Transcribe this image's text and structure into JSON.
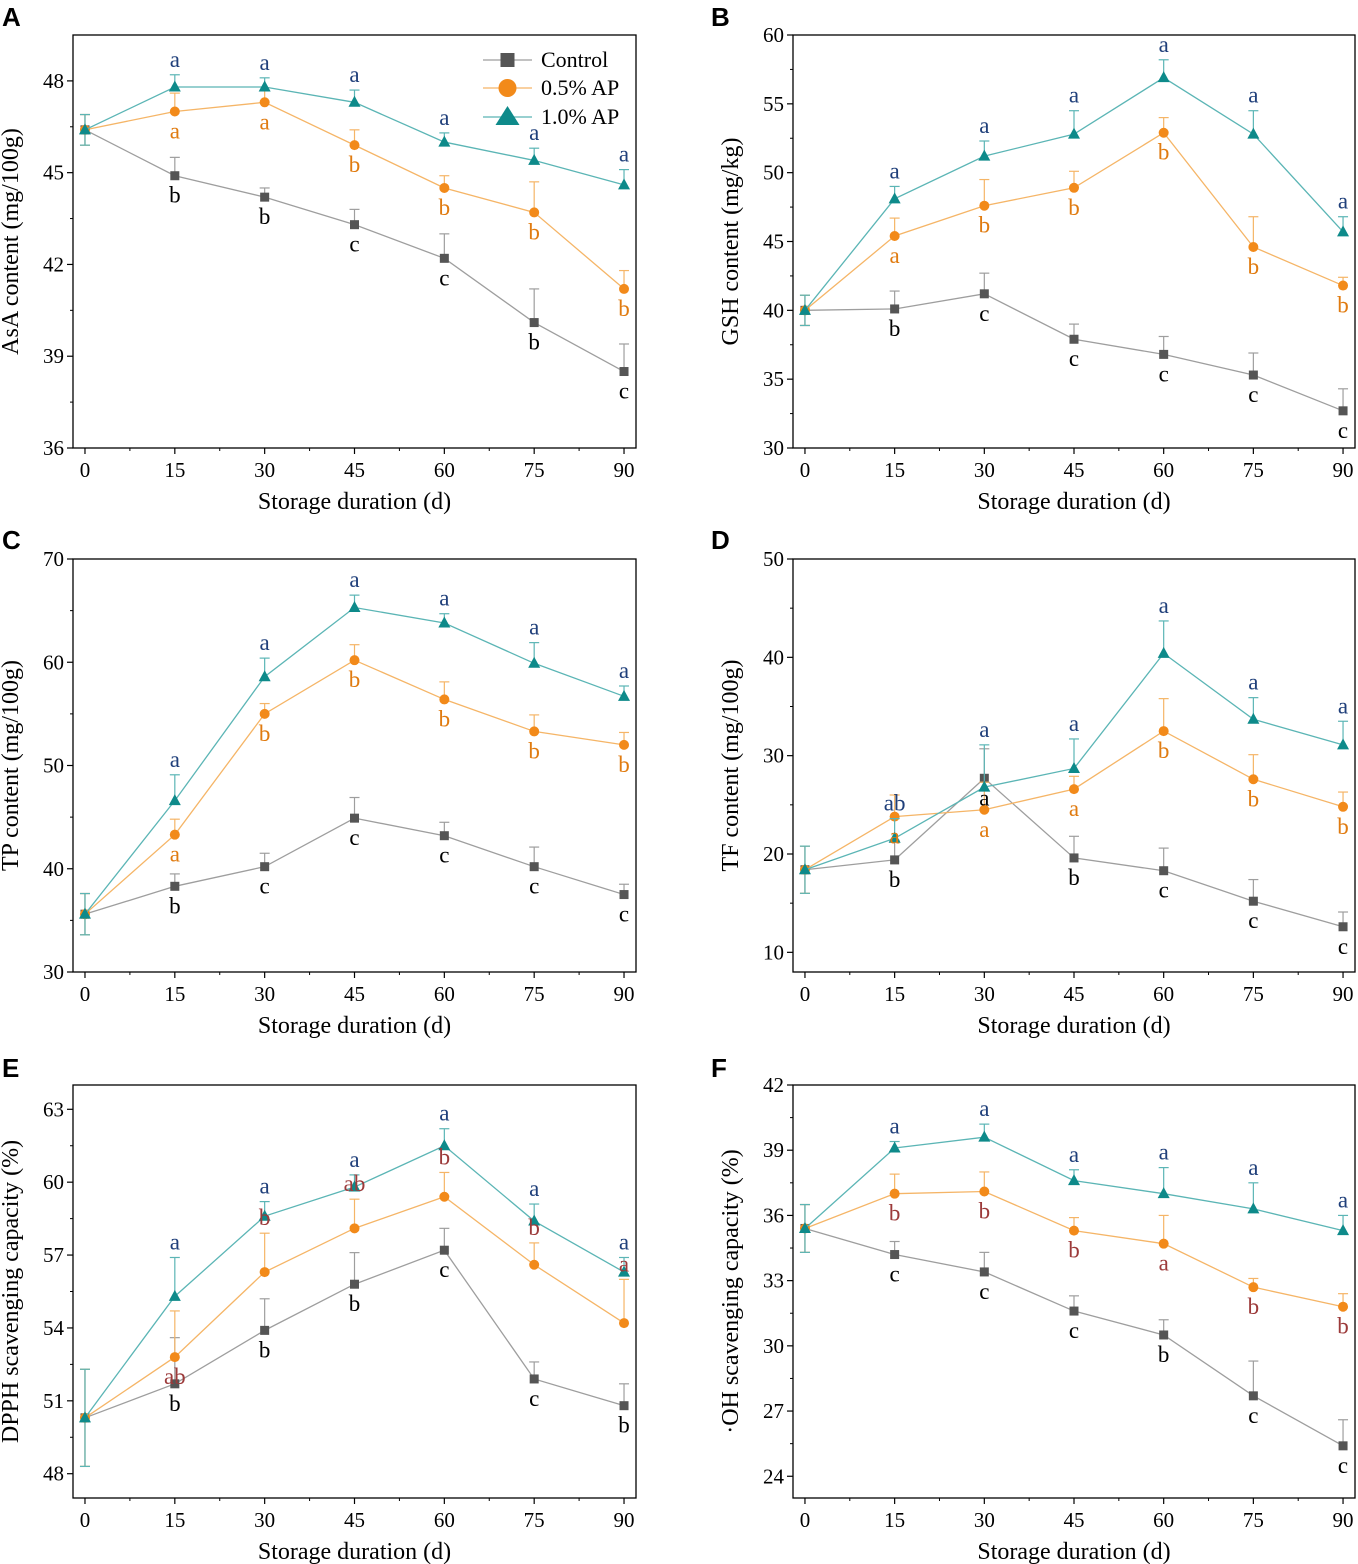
{
  "series_styles": [
    {
      "name": "Control",
      "color": "#555555",
      "line_color": "#9e9e9e",
      "marker": "square"
    },
    {
      "name": "0.5% AP",
      "color": "#f28a1a",
      "line_color": "#f5b567",
      "marker": "circle"
    },
    {
      "name": "1.0% AP",
      "color": "#0e8a8a",
      "line_color": "#5bb5b5",
      "marker": "triangle"
    }
  ],
  "legend": {
    "position": "top-right",
    "entries": [
      "Control",
      "0.5% AP",
      "1.0% AP"
    ]
  },
  "chart_data": [
    {
      "panel": "A",
      "type": "line",
      "xlabel": "Storage duration (d)",
      "ylabel": "AsA content (mg/100g)",
      "x": [
        0,
        15,
        30,
        45,
        60,
        75,
        90
      ],
      "xlim": [
        -2,
        92
      ],
      "ylim": [
        36,
        49.5
      ],
      "yticks": [
        36,
        39,
        42,
        45,
        48
      ],
      "ytick_labels": [
        "36",
        "39",
        "42",
        "45",
        "48"
      ],
      "series": [
        {
          "name": "Control",
          "values": [
            46.4,
            44.9,
            44.2,
            43.3,
            42.2,
            40.1,
            38.5
          ],
          "errors": [
            0.5,
            0.6,
            0.3,
            0.5,
            0.8,
            1.1,
            0.9
          ],
          "labels": [
            "",
            "b",
            "b",
            "c",
            "c",
            "b",
            "c"
          ],
          "label_pos": [
            "",
            "below",
            "below",
            "below",
            "below",
            "below",
            "below"
          ]
        },
        {
          "name": "0.5% AP",
          "values": [
            46.4,
            47.0,
            47.3,
            45.9,
            44.5,
            43.7,
            41.2
          ],
          "errors": [
            0.5,
            0.6,
            0.4,
            0.5,
            0.4,
            1.0,
            0.6
          ],
          "labels": [
            "",
            "a",
            "a",
            "b",
            "b",
            "b",
            "b"
          ],
          "label_pos": [
            "",
            "below",
            "below",
            "below",
            "below",
            "below",
            "below"
          ]
        },
        {
          "name": "1.0% AP",
          "values": [
            46.4,
            47.8,
            47.8,
            47.3,
            46.0,
            45.4,
            44.6
          ],
          "errors": [
            0.5,
            0.4,
            0.3,
            0.4,
            0.3,
            0.4,
            0.5
          ],
          "labels": [
            "",
            "a",
            "a",
            "a",
            "a",
            "a",
            "a"
          ],
          "label_pos": [
            "",
            "above",
            "above",
            "above",
            "above",
            "above",
            "above"
          ]
        }
      ]
    },
    {
      "panel": "B",
      "type": "line",
      "xlabel": "Storage duration (d)",
      "ylabel": "GSH content (mg/kg)",
      "x": [
        0,
        15,
        30,
        45,
        60,
        75,
        90
      ],
      "xlim": [
        -2,
        92
      ],
      "ylim": [
        30,
        60
      ],
      "yticks": [
        30,
        35,
        40,
        45,
        50,
        55,
        60
      ],
      "ytick_labels": [
        "30",
        "35",
        "40",
        "45",
        "50",
        "55",
        "60"
      ],
      "series": [
        {
          "name": "Control",
          "values": [
            40.0,
            40.1,
            41.2,
            37.9,
            36.8,
            35.3,
            32.7
          ],
          "errors": [
            1.1,
            1.3,
            1.5,
            1.1,
            1.3,
            1.6,
            1.6
          ],
          "labels": [
            "",
            "b",
            "c",
            "c",
            "c",
            "c",
            "c"
          ],
          "label_pos": [
            "",
            "below",
            "below",
            "below",
            "below",
            "below",
            "below"
          ]
        },
        {
          "name": "0.5% AP",
          "values": [
            40.0,
            45.4,
            47.6,
            48.9,
            52.9,
            44.6,
            41.8
          ],
          "errors": [
            1.1,
            1.3,
            1.9,
            1.2,
            1.1,
            2.2,
            0.6
          ],
          "labels": [
            "",
            "a",
            "b",
            "b",
            "b",
            "b",
            "b"
          ],
          "label_pos": [
            "",
            "below",
            "below",
            "below",
            "below",
            "below",
            "below"
          ]
        },
        {
          "name": "1.0% AP",
          "values": [
            40.0,
            48.1,
            51.2,
            52.8,
            56.9,
            52.8,
            45.7
          ],
          "errors": [
            1.1,
            0.9,
            1.1,
            1.7,
            1.3,
            1.7,
            1.1
          ],
          "labels": [
            "",
            "a",
            "a",
            "a",
            "a",
            "a",
            "a"
          ],
          "label_pos": [
            "",
            "above",
            "above",
            "above",
            "above",
            "above",
            "above"
          ]
        }
      ]
    },
    {
      "panel": "C",
      "type": "line",
      "xlabel": "Storage duration (d)",
      "ylabel": "TP content (mg/100g)",
      "x": [
        0,
        15,
        30,
        45,
        60,
        75,
        90
      ],
      "xlim": [
        -2,
        92
      ],
      "ylim": [
        30,
        70
      ],
      "yticks": [
        30,
        40,
        50,
        60,
        70
      ],
      "ytick_labels": [
        "30",
        "40",
        "50",
        "60",
        "70"
      ],
      "series": [
        {
          "name": "Control",
          "values": [
            35.6,
            38.3,
            40.2,
            44.9,
            43.2,
            40.2,
            37.5
          ],
          "errors": [
            2.0,
            1.2,
            1.3,
            2.0,
            1.3,
            1.9,
            1.0
          ],
          "labels": [
            "",
            "b",
            "c",
            "c",
            "c",
            "c",
            "c"
          ],
          "label_pos": [
            "",
            "below",
            "below",
            "below",
            "below",
            "below",
            "below"
          ]
        },
        {
          "name": "0.5% AP",
          "values": [
            35.6,
            43.3,
            55.0,
            60.2,
            56.4,
            53.3,
            52.0
          ],
          "errors": [
            2.0,
            1.5,
            1.0,
            1.5,
            1.7,
            1.6,
            1.2
          ],
          "labels": [
            "",
            "a",
            "b",
            "b",
            "b",
            "b",
            "b"
          ],
          "label_pos": [
            "",
            "below",
            "below",
            "below",
            "below",
            "below",
            "below"
          ]
        },
        {
          "name": "1.0% AP",
          "values": [
            35.6,
            46.6,
            58.6,
            65.3,
            63.8,
            59.9,
            56.7
          ],
          "errors": [
            2.0,
            2.5,
            1.8,
            1.2,
            0.9,
            2.0,
            1.0
          ],
          "labels": [
            "",
            "a",
            "a",
            "a",
            "a",
            "a",
            "a"
          ],
          "label_pos": [
            "",
            "above",
            "above",
            "above",
            "above",
            "above",
            "above"
          ]
        }
      ]
    },
    {
      "panel": "D",
      "type": "line",
      "xlabel": "Storage duration (d)",
      "ylabel": "TF content (mg/100g)",
      "x": [
        0,
        15,
        30,
        45,
        60,
        75,
        90
      ],
      "xlim": [
        -2,
        92
      ],
      "ylim": [
        8,
        50
      ],
      "yticks": [
        10,
        20,
        30,
        40,
        50
      ],
      "ytick_labels": [
        "10",
        "20",
        "30",
        "40",
        "50"
      ],
      "series": [
        {
          "name": "Control",
          "values": [
            18.4,
            19.4,
            27.7,
            19.6,
            18.3,
            15.2,
            12.6
          ],
          "errors": [
            2.4,
            2.0,
            3.0,
            2.2,
            2.3,
            2.2,
            1.5
          ],
          "labels": [
            "",
            "b",
            "a",
            "b",
            "c",
            "c",
            "c"
          ],
          "label_pos": [
            "",
            "below",
            "below",
            "below",
            "below",
            "below",
            "below"
          ]
        },
        {
          "name": "0.5% AP",
          "values": [
            18.4,
            23.8,
            24.5,
            26.6,
            32.5,
            27.6,
            24.8
          ],
          "errors": [
            2.4,
            2.2,
            2.8,
            1.3,
            3.3,
            2.5,
            1.5
          ],
          "labels": [
            "",
            "a",
            "a",
            "a",
            "b",
            "b",
            "b"
          ],
          "label_pos": [
            "",
            "below",
            "below",
            "below",
            "below",
            "below",
            "below"
          ]
        },
        {
          "name": "1.0% AP",
          "values": [
            18.4,
            21.6,
            26.8,
            28.7,
            40.4,
            33.7,
            31.1
          ],
          "errors": [
            2.4,
            2.0,
            4.3,
            3.0,
            3.3,
            2.2,
            2.4
          ],
          "labels": [
            "",
            "ab",
            "a",
            "a",
            "a",
            "a",
            "a"
          ],
          "label_pos": [
            "",
            "above",
            "above",
            "above",
            "above",
            "above",
            "above"
          ]
        }
      ]
    },
    {
      "panel": "E",
      "type": "line",
      "xlabel": "Storage duration (d)",
      "ylabel": "DPPH scavenging capacity (%)",
      "x": [
        0,
        15,
        30,
        45,
        60,
        75,
        90
      ],
      "xlim": [
        -2,
        92
      ],
      "ylim": [
        47,
        64
      ],
      "yticks": [
        48,
        51,
        54,
        57,
        60,
        63
      ],
      "ytick_labels": [
        "48",
        "51",
        "54",
        "57",
        "60",
        "63"
      ],
      "series": [
        {
          "name": "Control",
          "values": [
            50.3,
            51.7,
            53.9,
            55.8,
            57.2,
            51.9,
            50.8
          ],
          "errors": [
            2.0,
            1.9,
            1.3,
            1.3,
            0.9,
            0.7,
            0.9
          ],
          "labels": [
            "",
            "b",
            "b",
            "b",
            "c",
            "c",
            "b"
          ],
          "label_pos": [
            "",
            "below",
            "below",
            "below",
            "below",
            "below",
            "below"
          ]
        },
        {
          "name": "0.5% AP",
          "values": [
            50.3,
            52.8,
            56.3,
            58.1,
            59.4,
            56.6,
            54.2
          ],
          "errors": [
            2.0,
            1.9,
            1.6,
            1.2,
            1.0,
            0.9,
            1.8
          ],
          "labels": [
            "",
            "ab",
            "b",
            "ab",
            "b",
            "b",
            "a"
          ],
          "label_pos": [
            "",
            "below",
            "above",
            "above",
            "above",
            "above",
            "above"
          ]
        },
        {
          "name": "1.0% AP",
          "values": [
            50.3,
            55.3,
            58.6,
            59.8,
            61.5,
            58.4,
            56.3
          ],
          "errors": [
            2.0,
            1.6,
            0.6,
            0.5,
            0.7,
            0.7,
            0.6
          ],
          "labels": [
            "",
            "a",
            "a",
            "a",
            "a",
            "a",
            "a"
          ],
          "label_pos": [
            "",
            "above",
            "above",
            "above",
            "above",
            "above",
            "above"
          ]
        }
      ]
    },
    {
      "panel": "F",
      "type": "line",
      "xlabel": "Storage duration (d)",
      "ylabel": "·OH scavenging capacity (%)",
      "x": [
        0,
        15,
        30,
        45,
        60,
        75,
        90
      ],
      "xlim": [
        -2,
        92
      ],
      "ylim": [
        23,
        42
      ],
      "yticks": [
        24,
        27,
        30,
        33,
        36,
        39,
        42
      ],
      "ytick_labels": [
        "24",
        "27",
        "30",
        "33",
        "36",
        "39",
        "42"
      ],
      "series": [
        {
          "name": "Control",
          "values": [
            35.4,
            34.2,
            33.4,
            31.6,
            30.5,
            27.7,
            25.4
          ],
          "errors": [
            1.1,
            0.6,
            0.9,
            0.7,
            0.7,
            1.6,
            1.2
          ],
          "labels": [
            "",
            "c",
            "c",
            "c",
            "b",
            "c",
            "c"
          ],
          "label_pos": [
            "",
            "below",
            "below",
            "below",
            "below",
            "below",
            "below"
          ]
        },
        {
          "name": "0.5% AP",
          "values": [
            35.4,
            37.0,
            37.1,
            35.3,
            34.7,
            32.7,
            31.8
          ],
          "errors": [
            1.1,
            0.9,
            0.9,
            0.6,
            1.3,
            0.4,
            0.6
          ],
          "labels": [
            "",
            "b",
            "b",
            "b",
            "a",
            "b",
            "b"
          ],
          "label_pos": [
            "",
            "below",
            "below",
            "below",
            "below",
            "below",
            "below"
          ]
        },
        {
          "name": "1.0% AP",
          "values": [
            35.4,
            39.1,
            39.6,
            37.6,
            37.0,
            36.3,
            35.3
          ],
          "errors": [
            1.1,
            0.3,
            0.6,
            0.5,
            1.2,
            1.2,
            0.7
          ],
          "labels": [
            "",
            "a",
            "a",
            "a",
            "a",
            "a",
            "a"
          ],
          "label_pos": [
            "",
            "above",
            "above",
            "above",
            "above",
            "above",
            "above"
          ]
        }
      ]
    }
  ]
}
